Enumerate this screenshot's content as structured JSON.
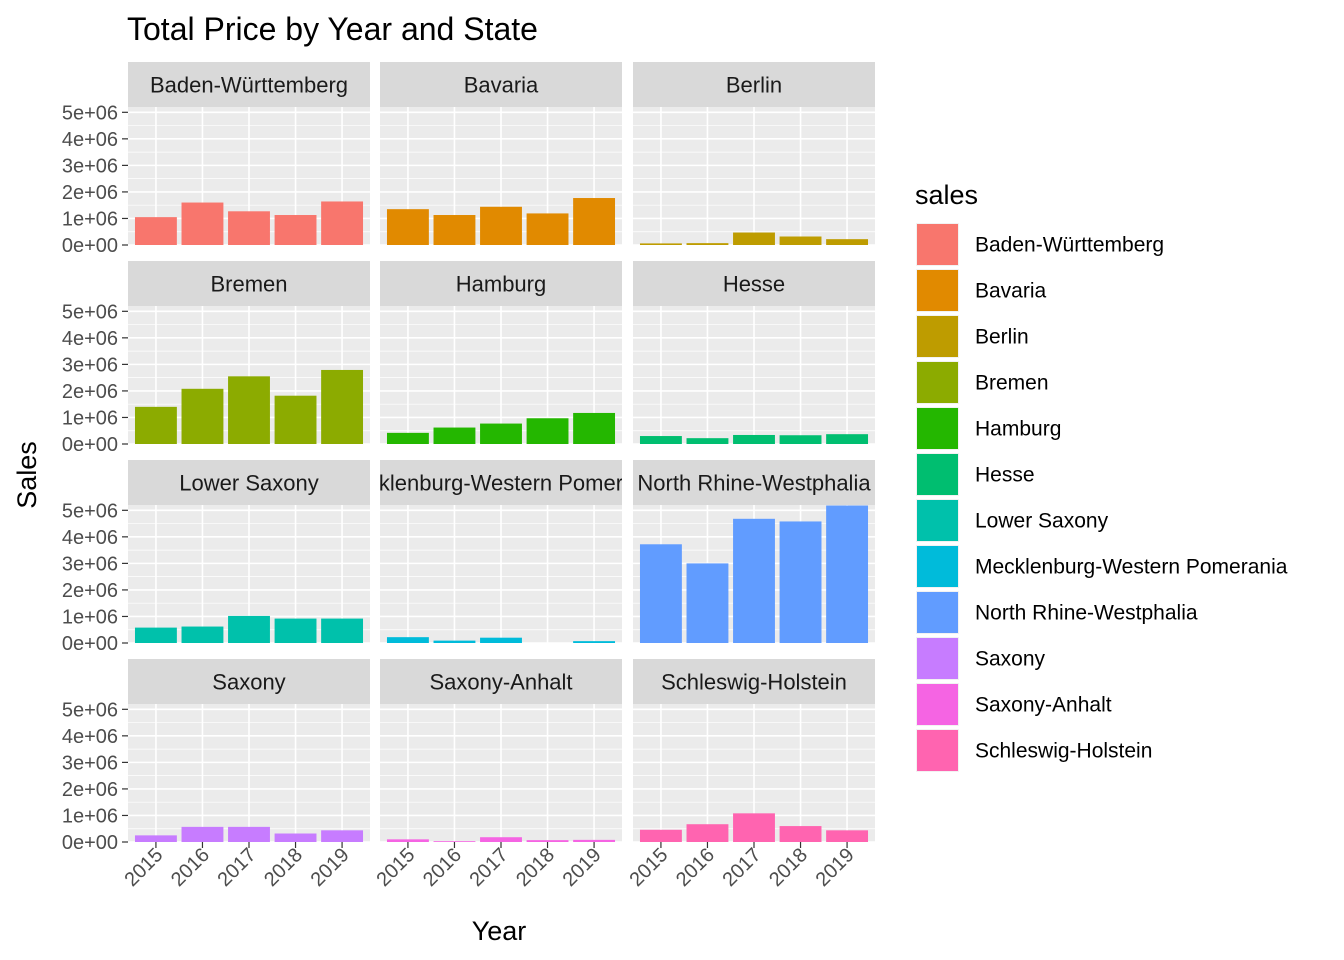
{
  "chart_data": {
    "type": "bar",
    "title": "Total Price by Year and State",
    "xlabel": "Year",
    "ylabel": "Sales",
    "legend_title": "sales",
    "legend_position": "right",
    "facet_layout": "4 rows x 3 columns",
    "categories": [
      "2015",
      "2016",
      "2017",
      "2018",
      "2019"
    ],
    "y_ticks": [
      "0e+00",
      "1e+06",
      "2e+06",
      "3e+06",
      "4e+06",
      "5e+06"
    ],
    "y_tick_values": [
      0,
      1000000,
      2000000,
      3000000,
      4000000,
      5000000
    ],
    "ylim": [
      0,
      5200000
    ],
    "grid": true,
    "series": [
      {
        "name": "Baden-Württemberg",
        "strip_label": "Baden-Württemberg",
        "color": "#F8766D",
        "values": [
          1050000,
          1600000,
          1270000,
          1130000,
          1640000
        ]
      },
      {
        "name": "Bavaria",
        "strip_label": "Bavaria",
        "color": "#E18A00",
        "values": [
          1350000,
          1130000,
          1440000,
          1190000,
          1770000
        ]
      },
      {
        "name": "Berlin",
        "strip_label": "Berlin",
        "color": "#BE9C00",
        "values": [
          60000,
          70000,
          470000,
          320000,
          220000
        ]
      },
      {
        "name": "Bremen",
        "strip_label": "Bremen",
        "color": "#8CAB00",
        "values": [
          1400000,
          2080000,
          2550000,
          1820000,
          2790000
        ]
      },
      {
        "name": "Hamburg",
        "strip_label": "Hamburg",
        "color": "#24B700",
        "values": [
          420000,
          620000,
          770000,
          970000,
          1170000
        ]
      },
      {
        "name": "Hesse",
        "strip_label": "Hesse",
        "color": "#00BE70",
        "values": [
          300000,
          220000,
          340000,
          330000,
          370000
        ]
      },
      {
        "name": "Lower Saxony",
        "strip_label": "Lower Saxony",
        "color": "#00C1AB",
        "values": [
          580000,
          620000,
          1020000,
          920000,
          920000
        ]
      },
      {
        "name": "Mecklenburg-Western Pomerania",
        "strip_label": "klenburg-Western Pomer",
        "color": "#00BBDA",
        "values": [
          220000,
          90000,
          200000,
          0,
          70000
        ]
      },
      {
        "name": "North Rhine-Westphalia",
        "strip_label": "North Rhine-Westphalia",
        "color": "#619CFF",
        "values": [
          3720000,
          3000000,
          4680000,
          4580000,
          5180000
        ]
      },
      {
        "name": "Saxony",
        "strip_label": "Saxony",
        "color": "#C77CFF",
        "values": [
          250000,
          570000,
          570000,
          320000,
          440000
        ]
      },
      {
        "name": "Saxony-Anhalt",
        "strip_label": "Saxony-Anhalt",
        "color": "#F564E3",
        "values": [
          100000,
          30000,
          180000,
          70000,
          80000
        ]
      },
      {
        "name": "Schleswig-Holstein",
        "strip_label": "Schleswig-Holstein",
        "color": "#FF64B0",
        "values": [
          460000,
          670000,
          1080000,
          600000,
          440000
        ]
      }
    ]
  }
}
